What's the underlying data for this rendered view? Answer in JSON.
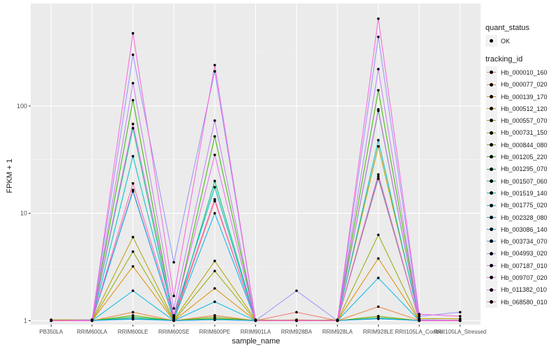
{
  "chart_data": {
    "type": "line",
    "title": "",
    "xlabel": "sample_name",
    "ylabel": "FPKM + 1",
    "y_scale": "log10",
    "ylim": [
      0.92,
      900
    ],
    "y_ticks": [
      1,
      10,
      100
    ],
    "y_tick_labels": [
      "1",
      "10",
      "100"
    ],
    "grid": true,
    "legend_position": "right",
    "categories": [
      "PB350LA",
      "RRIM600LA",
      "RRIM600LE",
      "RRIM600SE",
      "RRIM600PE",
      "RRIM901LA",
      "RRIM928BA",
      "RRIM928LA",
      "RRIM928LE",
      "RRII105LA_Control",
      "RRII105LA_Stressed"
    ],
    "shape_legend": {
      "title": "quant_status",
      "items": [
        "OK"
      ]
    },
    "color_legend_title": "tracking_id",
    "series": [
      {
        "name": "Hb_000010_160",
        "color": "#F8766D",
        "values": [
          1,
          1,
          16.5,
          1.02,
          13,
          1,
          1.2,
          1,
          21,
          1,
          1
        ]
      },
      {
        "name": "Hb_000077_020",
        "color": "#EC823C",
        "values": [
          1,
          1,
          1.2,
          1.0,
          1.12,
          1,
          1.02,
          1,
          1.35,
          1.01,
          1
        ]
      },
      {
        "name": "Hb_000139_170",
        "color": "#DC8D00",
        "values": [
          1,
          1,
          3.2,
          1.0,
          2.0,
          1,
          1,
          1,
          3.8,
          1,
          1
        ]
      },
      {
        "name": "Hb_000512_120",
        "color": "#C99800",
        "values": [
          1,
          1,
          1.05,
          1.0,
          1.05,
          1,
          1,
          1,
          1.1,
          1,
          1
        ]
      },
      {
        "name": "Hb_000557_070",
        "color": "#B3A000",
        "values": [
          1.02,
          1.02,
          6.0,
          1.02,
          3.6,
          1.02,
          1.0,
          1.02,
          42,
          1.05,
          1.04
        ]
      },
      {
        "name": "Hb_000731_150",
        "color": "#97A900",
        "values": [
          1,
          1,
          4.4,
          1.0,
          2.9,
          1,
          1,
          1,
          6.3,
          1,
          1
        ]
      },
      {
        "name": "Hb_000844_080",
        "color": "#72B000",
        "values": [
          1,
          1,
          1.12,
          1.0,
          1.08,
          1,
          1,
          1,
          1.1,
          1,
          1
        ]
      },
      {
        "name": "Hb_001205_220",
        "color": "#39B600",
        "values": [
          1,
          1,
          113,
          1.05,
          52,
          1,
          1,
          1,
          140,
          1.02,
          1.01
        ]
      },
      {
        "name": "Hb_001295_070",
        "color": "#00BB4E",
        "values": [
          1,
          1,
          1.08,
          1.0,
          1.04,
          1,
          1,
          1,
          1.06,
          1,
          1
        ]
      },
      {
        "name": "Hb_001507_060",
        "color": "#00BF7D",
        "values": [
          1,
          1,
          62,
          1.0,
          20,
          1,
          1,
          1,
          90,
          1,
          1
        ]
      },
      {
        "name": "Hb_001519_140",
        "color": "#00C1A3",
        "values": [
          1,
          1,
          1.05,
          1.0,
          1.02,
          1,
          1,
          1,
          1.05,
          1,
          1
        ]
      },
      {
        "name": "Hb_001775_020",
        "color": "#00BFC4",
        "values": [
          1,
          1,
          34,
          1.1,
          17.5,
          1,
          1,
          1,
          48,
          1.01,
          1.0
        ]
      },
      {
        "name": "Hb_002328_080",
        "color": "#00BAE0",
        "values": [
          1,
          1,
          1.9,
          1.0,
          1.5,
          1,
          1,
          1,
          2.5,
          1,
          1
        ]
      },
      {
        "name": "Hb_003086_140",
        "color": "#00B0F6",
        "values": [
          1,
          1,
          16,
          1.02,
          10,
          1,
          1,
          1,
          22,
          1,
          1
        ]
      },
      {
        "name": "Hb_003734_070",
        "color": "#35A2FF",
        "values": [
          1,
          1,
          1.03,
          1.0,
          1.02,
          1,
          1,
          1,
          1.04,
          1,
          1
        ]
      },
      {
        "name": "Hb_004993_020",
        "color": "#9590FF",
        "values": [
          1,
          1.02,
          300,
          3.5,
          210,
          1.0,
          1.9,
          1.0,
          440,
          1.1,
          1.2
        ]
      },
      {
        "name": "Hb_007187_010",
        "color": "#C77CFF",
        "values": [
          1,
          1,
          163,
          1.3,
          73,
          1,
          1,
          1,
          220,
          1.02,
          1.01
        ]
      },
      {
        "name": "Hb_009707_020",
        "color": "#E76BF3",
        "values": [
          1,
          1,
          68,
          1.12,
          35,
          1,
          1,
          1,
          93,
          1,
          1
        ]
      },
      {
        "name": "Hb_011382_010",
        "color": "#FA62DB",
        "values": [
          1,
          1,
          475,
          1.7,
          240,
          1,
          1,
          1,
          650,
          1.15,
          1.1
        ]
      },
      {
        "name": "Hb_068580_010",
        "color": "#FF62BC",
        "values": [
          1,
          1,
          19,
          1.08,
          13.5,
          1,
          1,
          1,
          23,
          1,
          1
        ]
      }
    ]
  }
}
